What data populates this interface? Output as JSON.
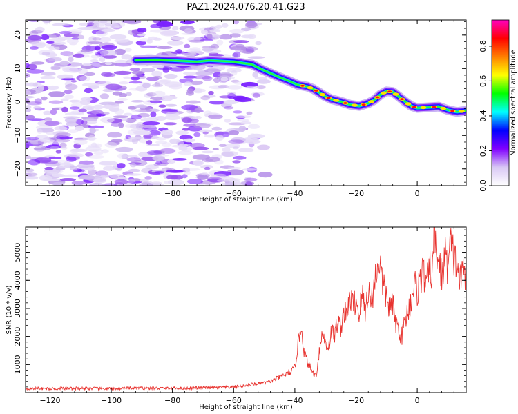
{
  "figure": {
    "title": "PAZ1.2024.076.20.41.G23"
  },
  "chart_data": [
    {
      "type": "heatmap",
      "xlabel": "Height of straight line (km)",
      "ylabel": "Frequency (Hz)",
      "xlim": [
        -128,
        16
      ],
      "ylim": [
        -25,
        24.5
      ],
      "xticks": [
        -120,
        -100,
        -80,
        -60,
        -40,
        -20,
        0
      ],
      "yticks": [
        -20,
        -10,
        0,
        10,
        20
      ],
      "ridge": [
        [
          -92,
          12.5
        ],
        [
          -85,
          12.6
        ],
        [
          -80,
          12.4
        ],
        [
          -76,
          12.2
        ],
        [
          -72,
          12.0
        ],
        [
          -68,
          12.4
        ],
        [
          -64,
          12.2
        ],
        [
          -60,
          12.0
        ],
        [
          -57,
          11.6
        ],
        [
          -54,
          11.2
        ],
        [
          -51,
          9.8
        ],
        [
          -48,
          8.6
        ],
        [
          -45,
          7.4
        ],
        [
          -42,
          6.3
        ],
        [
          -39,
          5.1
        ],
        [
          -36,
          4.6
        ],
        [
          -34,
          3.9
        ],
        [
          -32,
          2.8
        ],
        [
          -30,
          1.6
        ],
        [
          -28,
          0.8
        ],
        [
          -25,
          0.1
        ],
        [
          -22,
          -0.8
        ],
        [
          -19,
          -1.2
        ],
        [
          -16,
          -0.4
        ],
        [
          -14,
          0.6
        ],
        [
          -12,
          2.2
        ],
        [
          -10,
          3.2
        ],
        [
          -8,
          3.0
        ],
        [
          -6,
          1.6
        ],
        [
          -4,
          0.1
        ],
        [
          -2,
          -1.2
        ],
        [
          0,
          -1.8
        ],
        [
          4,
          -1.6
        ],
        [
          7,
          -1.4
        ],
        [
          10,
          -2.4
        ],
        [
          13,
          -3.0
        ],
        [
          16,
          -2.6
        ]
      ],
      "colorbar": {
        "label": "Normalized spectral amplitude",
        "range": [
          0,
          0.95
        ],
        "ticks": [
          "0.0",
          "0.2",
          "0.4",
          "0.6",
          "0.8"
        ],
        "colors": [
          "#ffffff",
          "#d8c7f5",
          "#8000ff",
          "#0000ff",
          "#00ffff",
          "#00ff00",
          "#ffff00",
          "#ff8000",
          "#ff0000",
          "#ff00c0"
        ]
      }
    },
    {
      "type": "line",
      "xlabel": "Height of straight line (km)",
      "ylabel": "SNR (10 * v/v)",
      "xlim": [
        -128,
        16
      ],
      "ylim": [
        0,
        5900
      ],
      "xticks": [
        -120,
        -100,
        -80,
        -60,
        -40,
        -20,
        0
      ],
      "yticks": [
        1000,
        2000,
        3000,
        4000,
        5000
      ],
      "color": "#e8332f",
      "series": [
        {
          "x": [
            -128,
            -120,
            -110,
            -100,
            -90,
            -80,
            -70,
            -65,
            -60,
            -58,
            -56,
            -54,
            -52,
            -50,
            -48,
            -46,
            -44,
            -42,
            -41,
            -40,
            -39,
            -38,
            -37.5,
            -37,
            -36,
            -35,
            -34,
            -33,
            -32,
            -31,
            -30,
            -29,
            -28,
            -27,
            -26,
            -25,
            -24,
            -23,
            -22,
            -21,
            -20,
            -19,
            -18,
            -17,
            -16,
            -15,
            -14,
            -13,
            -12.5,
            -12,
            -11,
            -10,
            -9,
            -8,
            -7,
            -6,
            -5,
            -4,
            -3,
            -2,
            -1,
            0,
            1,
            2,
            3,
            4,
            5,
            5.5,
            6,
            7,
            8,
            9,
            10,
            11,
            12,
            13,
            14,
            15,
            16
          ],
          "y": [
            150,
            140,
            150,
            140,
            160,
            150,
            170,
            180,
            200,
            230,
            260,
            300,
            320,
            350,
            400,
            500,
            600,
            700,
            750,
            900,
            1700,
            2400,
            2000,
            1500,
            1100,
            900,
            700,
            600,
            1500,
            2100,
            1800,
            1600,
            2200,
            2000,
            2600,
            2300,
            2900,
            2700,
            3400,
            3100,
            3300,
            2800,
            3500,
            2900,
            3700,
            3200,
            3900,
            4500,
            4850,
            4400,
            3700,
            3400,
            3000,
            3100,
            2500,
            2200,
            2000,
            2600,
            2900,
            3300,
            3900,
            3600,
            4100,
            4300,
            3800,
            4400,
            4300,
            5900,
            5200,
            4700,
            4100,
            4900,
            4500,
            5300,
            4800,
            4600,
            3900,
            4400,
            4300
          ]
        }
      ]
    }
  ]
}
